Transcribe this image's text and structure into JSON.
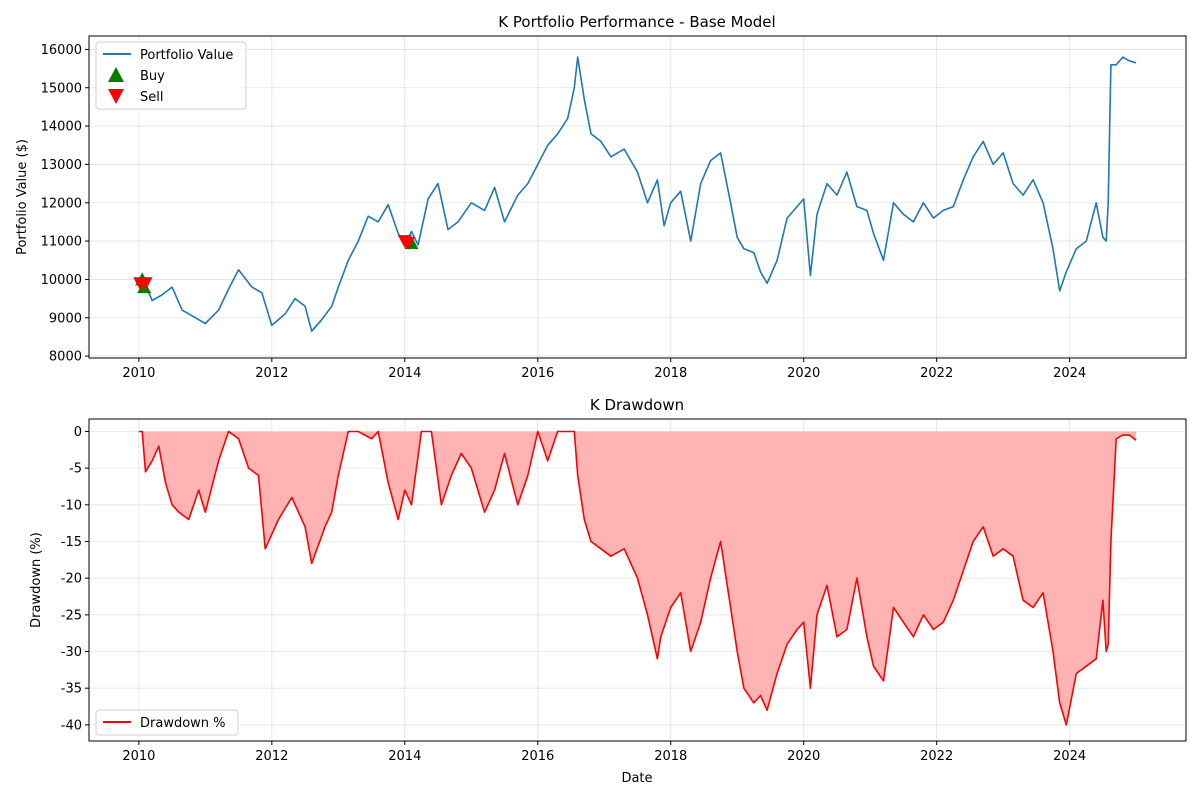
{
  "chart_data": [
    {
      "type": "line",
      "title": "K Portfolio Performance - Base Model",
      "xlabel": "",
      "ylabel": "Portfolio Value ($)",
      "xlim": [
        2009.25,
        2025.75
      ],
      "ylim": [
        7950,
        16350
      ],
      "x_ticks": [
        2010,
        2012,
        2014,
        2016,
        2018,
        2020,
        2022,
        2024
      ],
      "y_ticks": [
        8000,
        9000,
        10000,
        11000,
        12000,
        13000,
        14000,
        15000,
        16000
      ],
      "grid": true,
      "legend_position": "top-left",
      "colors": {
        "line": "#1f77b4",
        "buy": "#008000",
        "sell": "#ff0000"
      },
      "series": [
        {
          "name": "Portfolio Value",
          "x": [
            2010.0,
            2010.1,
            2010.2,
            2010.35,
            2010.5,
            2010.65,
            2010.8,
            2011.0,
            2011.2,
            2011.35,
            2011.5,
            2011.7,
            2011.85,
            2012.0,
            2012.2,
            2012.35,
            2012.5,
            2012.6,
            2012.75,
            2012.9,
            2013.0,
            2013.15,
            2013.3,
            2013.45,
            2013.6,
            2013.75,
            2013.9,
            2014.0,
            2014.1,
            2014.2,
            2014.35,
            2014.5,
            2014.65,
            2014.8,
            2015.0,
            2015.2,
            2015.35,
            2015.5,
            2015.7,
            2015.85,
            2016.0,
            2016.15,
            2016.3,
            2016.45,
            2016.55,
            2016.6,
            2016.7,
            2016.8,
            2016.95,
            2017.1,
            2017.3,
            2017.5,
            2017.65,
            2017.8,
            2017.9,
            2018.0,
            2018.15,
            2018.3,
            2018.45,
            2018.6,
            2018.75,
            2018.9,
            2019.0,
            2019.1,
            2019.25,
            2019.35,
            2019.45,
            2019.6,
            2019.75,
            2019.9,
            2020.0,
            2020.1,
            2020.2,
            2020.35,
            2020.5,
            2020.65,
            2020.8,
            2020.95,
            2021.05,
            2021.2,
            2021.35,
            2021.5,
            2021.65,
            2021.8,
            2021.95,
            2022.1,
            2022.25,
            2022.4,
            2022.55,
            2022.7,
            2022.85,
            2023.0,
            2023.15,
            2023.3,
            2023.45,
            2023.6,
            2023.75,
            2023.85,
            2023.95,
            2024.1,
            2024.25,
            2024.4,
            2024.5,
            2024.55,
            2024.58,
            2024.62,
            2024.7,
            2024.8,
            2024.9,
            2025.0
          ],
          "values": [
            10000,
            9850,
            9450,
            9600,
            9800,
            9200,
            9050,
            8850,
            9200,
            9750,
            10250,
            9800,
            9650,
            8800,
            9100,
            9500,
            9300,
            8650,
            8950,
            9300,
            9800,
            10500,
            11000,
            11650,
            11500,
            11950,
            11200,
            10900,
            11250,
            10900,
            12100,
            12500,
            11300,
            11500,
            12000,
            11800,
            12400,
            11500,
            12200,
            12500,
            13000,
            13500,
            13800,
            14200,
            15000,
            15800,
            14700,
            13800,
            13600,
            13200,
            13400,
            12800,
            12000,
            12600,
            11400,
            12000,
            12300,
            11000,
            12500,
            13100,
            13300,
            12000,
            11100,
            10800,
            10700,
            10200,
            9900,
            10500,
            11600,
            11900,
            12100,
            10100,
            11700,
            12500,
            12200,
            12800,
            11900,
            11800,
            11200,
            10500,
            12000,
            11700,
            11500,
            12000,
            11600,
            11800,
            11900,
            12600,
            13200,
            13600,
            13000,
            13300,
            12500,
            12200,
            12600,
            12000,
            10800,
            9700,
            10200,
            10800,
            11000,
            12000,
            11100,
            11000,
            12000,
            15600,
            15600,
            15800,
            15700,
            15650
          ]
        }
      ],
      "markers": [
        {
          "name": "Buy",
          "points": [
            {
              "x": 2010.05,
              "y": 10000
            },
            {
              "x": 2010.08,
              "y": 9800
            },
            {
              "x": 2014.1,
              "y": 10950
            }
          ]
        },
        {
          "name": "Sell",
          "points": [
            {
              "x": 2010.02,
              "y": 9900
            },
            {
              "x": 2010.1,
              "y": 9900
            },
            {
              "x": 2014.0,
              "y": 11000
            },
            {
              "x": 2014.05,
              "y": 10950
            }
          ]
        }
      ]
    },
    {
      "type": "area",
      "title": "K Drawdown",
      "xlabel": "Date",
      "ylabel": "Drawdown (%)",
      "xlim": [
        2009.25,
        2025.75
      ],
      "ylim": [
        -42.2,
        1.7
      ],
      "x_ticks": [
        2010,
        2012,
        2014,
        2016,
        2018,
        2020,
        2022,
        2024
      ],
      "y_ticks": [
        0,
        -5,
        -10,
        -15,
        -20,
        -25,
        -30,
        -35,
        -40
      ],
      "grid": true,
      "legend_position": "bottom-left",
      "colors": {
        "line": "#ff0000",
        "fill": "#ffb3b3"
      },
      "series": [
        {
          "name": "Drawdown %",
          "x": [
            2010.0,
            2010.05,
            2010.1,
            2010.2,
            2010.3,
            2010.4,
            2010.5,
            2010.6,
            2010.75,
            2010.9,
            2011.0,
            2011.2,
            2011.35,
            2011.5,
            2011.65,
            2011.8,
            2011.9,
            2012.1,
            2012.3,
            2012.5,
            2012.6,
            2012.8,
            2012.9,
            2013.0,
            2013.15,
            2013.3,
            2013.5,
            2013.6,
            2013.75,
            2013.9,
            2014.0,
            2014.1,
            2014.25,
            2014.4,
            2014.55,
            2014.7,
            2014.85,
            2015.0,
            2015.2,
            2015.35,
            2015.5,
            2015.7,
            2015.85,
            2016.0,
            2016.15,
            2016.3,
            2016.45,
            2016.55,
            2016.6,
            2016.7,
            2016.8,
            2016.95,
            2017.1,
            2017.3,
            2017.5,
            2017.65,
            2017.8,
            2017.85,
            2018.0,
            2018.15,
            2018.3,
            2018.45,
            2018.6,
            2018.75,
            2018.9,
            2019.0,
            2019.1,
            2019.25,
            2019.35,
            2019.45,
            2019.6,
            2019.75,
            2019.9,
            2020.0,
            2020.1,
            2020.2,
            2020.35,
            2020.5,
            2020.65,
            2020.8,
            2020.95,
            2021.05,
            2021.2,
            2021.35,
            2021.5,
            2021.65,
            2021.8,
            2021.95,
            2022.1,
            2022.25,
            2022.4,
            2022.55,
            2022.7,
            2022.85,
            2023.0,
            2023.15,
            2023.3,
            2023.45,
            2023.6,
            2023.75,
            2023.85,
            2023.95,
            2024.1,
            2024.25,
            2024.4,
            2024.5,
            2024.55,
            2024.58,
            2024.62,
            2024.7,
            2024.8,
            2024.9,
            2025.0
          ],
          "values": [
            0,
            0,
            -5.5,
            -4,
            -2,
            -7,
            -10,
            -11,
            -12,
            -8,
            -11,
            -4,
            0,
            -1,
            -5,
            -6,
            -16,
            -12,
            -9,
            -13,
            -18,
            -13,
            -11,
            -6,
            0,
            0,
            -1,
            0,
            -7,
            -12,
            -8,
            -10,
            0,
            0,
            -10,
            -6,
            -3,
            -5,
            -11,
            -8,
            -3,
            -10,
            -6,
            0,
            -4,
            0,
            0,
            0,
            -6,
            -12,
            -15,
            -16,
            -17,
            -16,
            -20,
            -25,
            -31,
            -28,
            -24,
            -22,
            -30,
            -26,
            -20,
            -15,
            -24,
            -30,
            -35,
            -37,
            -36,
            -38,
            -33,
            -29,
            -27,
            -26,
            -35,
            -25,
            -21,
            -28,
            -27,
            -20,
            -28,
            -32,
            -34,
            -24,
            -26,
            -28,
            -25,
            -27,
            -26,
            -23,
            -19,
            -15,
            -13,
            -17,
            -16,
            -17,
            -23,
            -24,
            -22,
            -30,
            -37,
            -40,
            -33,
            -32,
            -31,
            -23,
            -30,
            -29,
            -15,
            -1,
            -0.5,
            -0.5,
            -1.2
          ]
        }
      ]
    }
  ]
}
